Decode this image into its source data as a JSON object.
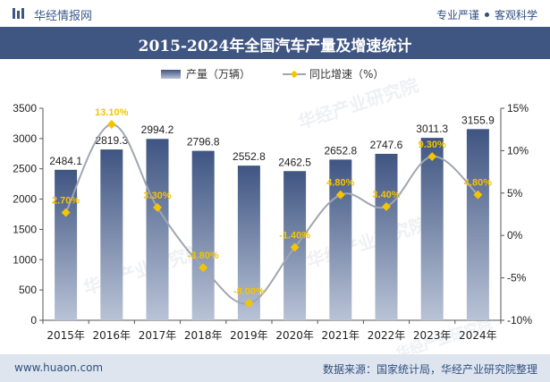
{
  "header": {
    "brand": "华经情报网",
    "tagline_left": "专业严谨",
    "tagline_right": "客观科学"
  },
  "title": "2015-2024年全国汽车产量及增速统计",
  "legend": {
    "bar_label": "产量（万辆）",
    "line_label": "同比增速（%）"
  },
  "footer": {
    "site": "www.huaon.com",
    "source": "数据来源：国家统计局，华经产业研究院整理"
  },
  "watermark": {
    "text": "华经产业研究院",
    "sub": "www.huaon.com"
  },
  "colors": {
    "bar_top": "#3f5582",
    "bar_bottom": "#b9c3d6",
    "line": "#a0a6b0",
    "marker": "#f5c400",
    "line_label": "#f5c400",
    "title_bg": "#3f5582"
  },
  "chart_data": {
    "type": "bar",
    "categories": [
      "2015年",
      "2016年",
      "2017年",
      "2018年",
      "2019年",
      "2020年",
      "2021年",
      "2022年",
      "2023年",
      "2024年"
    ],
    "series": [
      {
        "name": "产量（万辆）",
        "type": "bar",
        "axis": "left",
        "values": [
          2484.1,
          2819.3,
          2994.2,
          2796.8,
          2552.8,
          2462.5,
          2652.8,
          2747.6,
          3011.3,
          3155.9
        ],
        "labels": [
          "2484.1",
          "2819.3",
          "2994.2",
          "2796.8",
          "2552.8",
          "2462.5",
          "2652.8",
          "2747.6",
          "3011.3",
          "3155.9"
        ]
      },
      {
        "name": "同比增速（%）",
        "type": "line",
        "axis": "right",
        "values": [
          2.7,
          13.1,
          3.3,
          -3.8,
          -8.0,
          -1.4,
          4.8,
          3.4,
          9.3,
          4.8
        ],
        "labels": [
          "2.70%",
          "13.10%",
          "3.30%",
          "-3.80%",
          "-8.00%",
          "-1.40%",
          "4.80%",
          "3.40%",
          "9.30%",
          "4.80%"
        ]
      }
    ],
    "y_left": {
      "min": 0,
      "max": 3500,
      "ticks": [
        "0",
        "500",
        "1000",
        "1500",
        "2000",
        "2500",
        "3000",
        "3500"
      ]
    },
    "y_right": {
      "min": -10,
      "max": 15,
      "ticks": [
        "-10%",
        "-5%",
        "0%",
        "5%",
        "10%",
        "15%"
      ]
    },
    "grid": false
  }
}
